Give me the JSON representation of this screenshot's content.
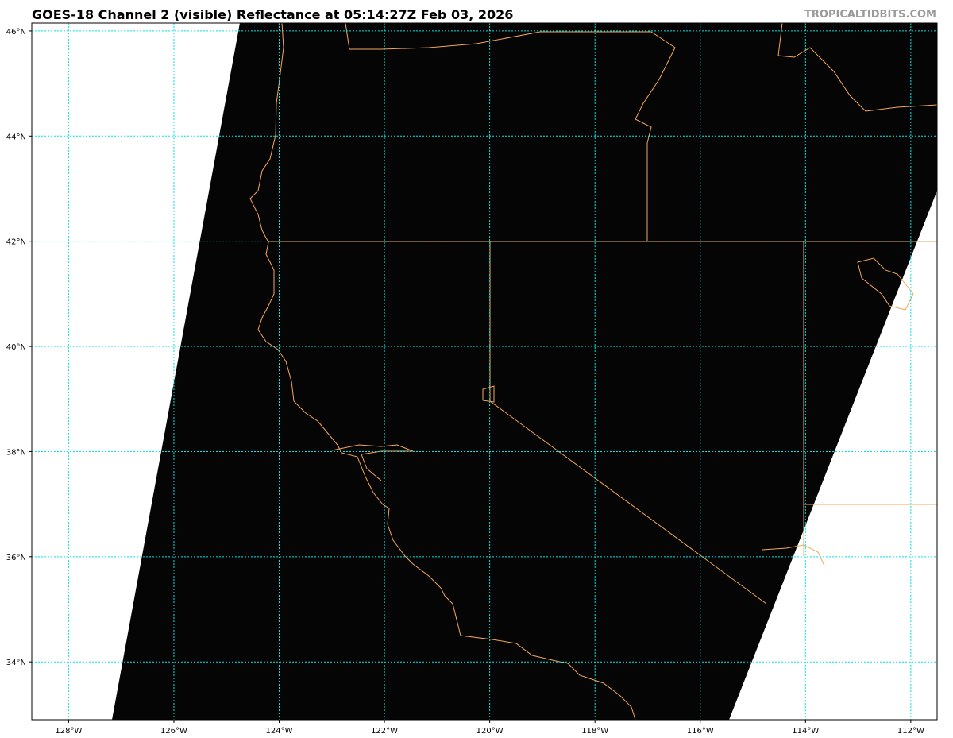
{
  "header": {
    "title": "GOES-18 Channel 2 (visible) Reflectance at 05:14:27Z Feb 03, 2026",
    "credit": "TROPICALTIDBITS.COM"
  },
  "map": {
    "projection": "plate carree",
    "lon_range": [
      -128.7,
      -111.5
    ],
    "lat_range": [
      32.9,
      46.15
    ],
    "gridline_color": "#00e5e5",
    "boundary_color": "#f4a75a",
    "image_fill": "#050505",
    "lon_ticks": [
      {
        "value": -128,
        "label": "128°W"
      },
      {
        "value": -126,
        "label": "126°W"
      },
      {
        "value": -124,
        "label": "124°W"
      },
      {
        "value": -122,
        "label": "122°W"
      },
      {
        "value": -120,
        "label": "120°W"
      },
      {
        "value": -118,
        "label": "118°W"
      },
      {
        "value": -116,
        "label": "116°W"
      },
      {
        "value": -114,
        "label": "114°W"
      },
      {
        "value": -112,
        "label": "112°W"
      }
    ],
    "lat_ticks": [
      {
        "value": 46,
        "label": "46°N"
      },
      {
        "value": 44,
        "label": "44°N"
      },
      {
        "value": 42,
        "label": "42°N"
      },
      {
        "value": 40,
        "label": "40°N"
      },
      {
        "value": 38,
        "label": "38°N"
      },
      {
        "value": 36,
        "label": "36°N"
      },
      {
        "value": 34,
        "label": "34°N"
      }
    ]
  }
}
